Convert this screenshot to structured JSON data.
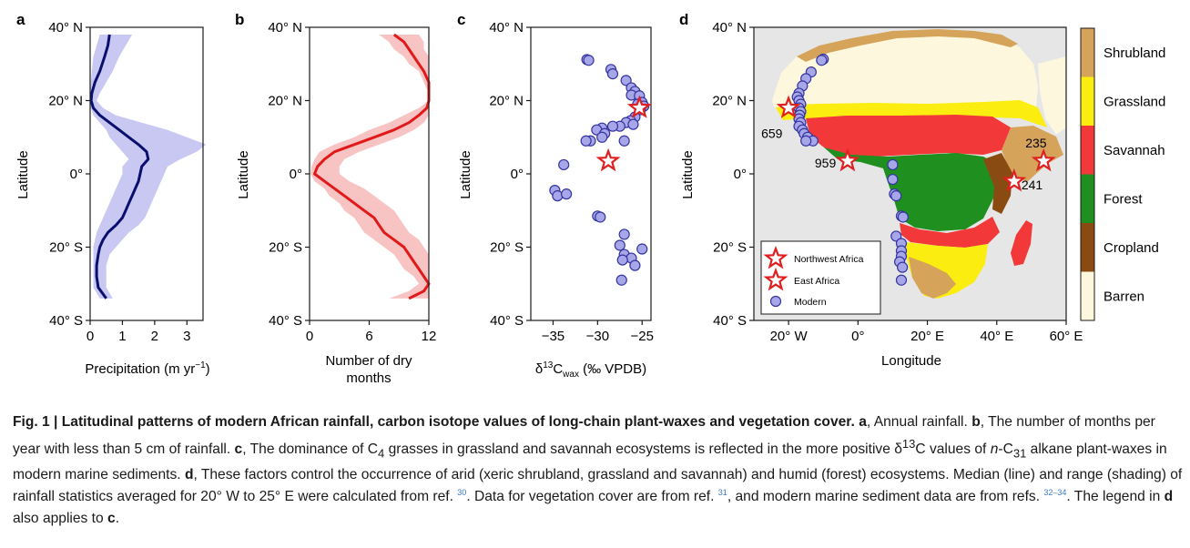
{
  "panels": {
    "a": {
      "letter": "a",
      "xlabel_main": "Precipitation (m yr",
      "xlabel_sup": "−1",
      "xlabel_end": ")",
      "xticks": [
        "0",
        "1",
        "2",
        "3"
      ],
      "ylabel": "Latitude"
    },
    "b": {
      "letter": "b",
      "xlabel_line1": "Number of dry",
      "xlabel_line2": "months",
      "xticks": [
        "0",
        "6",
        "12"
      ],
      "ylabel": "Latitude"
    },
    "c": {
      "letter": "c",
      "xlabel_delta": "δ",
      "xlabel_sup": "13",
      "xlabel_c": "C",
      "xlabel_sub": "wax",
      "xlabel_end": " (‰ VPDB)",
      "xticks": [
        "−35",
        "−30",
        "−25"
      ],
      "ylabel": "Latitude"
    },
    "d": {
      "letter": "d",
      "xlabel": "Longitude",
      "xticks": [
        "20° W",
        "0°",
        "20° E",
        "40° E",
        "60° E"
      ],
      "ylabel": "Latitude",
      "site_labels": [
        "659",
        "959",
        "235",
        "241"
      ],
      "legend": [
        "Northwest Africa",
        "East Africa",
        "Modern"
      ]
    }
  },
  "yticks": [
    "40° N",
    "20° N",
    "0°",
    "20° S",
    "40° S"
  ],
  "colorbar": {
    "classes": [
      {
        "label": "Shrubland",
        "color": "#d6a35a"
      },
      {
        "label": "Grassland",
        "color": "#fbed10"
      },
      {
        "label": "Savannah",
        "color": "#f23838"
      },
      {
        "label": "Forest",
        "color": "#1f8f1f"
      },
      {
        "label": "Cropland",
        "color": "#8a4b12"
      },
      {
        "label": "Barren",
        "color": "#fdf7de"
      }
    ]
  },
  "colors": {
    "median_a": "#0a0f6e",
    "range_a": "#c8c8f2",
    "median_b": "#e01a1a",
    "range_b": "#f7c3c3",
    "marker_fill": "#a6a6e8",
    "marker_stroke": "#3535a0",
    "star": "#e02020",
    "ocean": "#e6e6e6"
  },
  "caption": {
    "fig": "Fig. 1 | ",
    "title": "Latitudinal patterns of modern African rainfall, carbon isotope values of long-chain plant-waxes and vegetation cover.",
    "a_letter": "a",
    "a_text": ", Annual rainfall. ",
    "b_letter": "b",
    "b_text": ", The number of months per year with less than 5 cm of rainfall. ",
    "c_letter": "c",
    "c_text1": ", The dominance of C",
    "c_sub": "4",
    "c_text2": " grasses in grassland and savannah ecosystems is reflected in the more positive δ",
    "c_sup": "13",
    "c_text3": "C values of ",
    "c_italic": "n",
    "c_text4": "-C",
    "c_sub2": "31",
    "c_text5": " alkane plant-waxes in modern marine sediments. ",
    "d_letter": "d",
    "d_text": ", These factors control the occurrence of arid (xeric shrubland, grassland and savannah) and humid (forest) ecosystems. Median (line) and range (shading) of rainfall statistics averaged for 20° W to 25° E were calculated from ref. ",
    "ref30": "30",
    "d_text2": ". Data for vegetation cover are from ref. ",
    "ref31": "31",
    "d_text3": ", and modern marine sediment data are from refs. ",
    "ref32": "32–34",
    "d_text4": ". The legend in ",
    "d_letter2": "d",
    "d_text5": " also applies to ",
    "c_letter2": "c",
    "d_text6": "."
  },
  "chart_data": [
    {
      "type": "line",
      "panel": "a",
      "xlabel": "Precipitation (m yr−1)",
      "ylabel": "Latitude",
      "xlim": [
        0,
        3.5
      ],
      "ylim": [
        -40,
        40
      ],
      "series": [
        {
          "lat": [
            38,
            35,
            32,
            28,
            25,
            22,
            20,
            18,
            16,
            14,
            12,
            10,
            8,
            6,
            4,
            2,
            0,
            -2,
            -4,
            -6,
            -8,
            -10,
            -12,
            -14,
            -16,
            -18,
            -20,
            -22,
            -25,
            -28,
            -31,
            -34
          ],
          "median": [
            0.6,
            0.55,
            0.45,
            0.3,
            0.15,
            0.05,
            0.03,
            0.1,
            0.3,
            0.6,
            0.9,
            1.2,
            1.5,
            1.75,
            1.8,
            1.6,
            1.55,
            1.5,
            1.4,
            1.3,
            1.2,
            1.1,
            1.0,
            0.8,
            0.55,
            0.4,
            0.3,
            0.25,
            0.2,
            0.2,
            0.25,
            0.5
          ],
          "low": [
            0.3,
            0.2,
            0.1,
            0.05,
            0.02,
            0.01,
            0.01,
            0.02,
            0.1,
            0.3,
            0.5,
            0.6,
            0.8,
            1.0,
            1.2,
            1.0,
            1.0,
            0.9,
            0.8,
            0.7,
            0.6,
            0.5,
            0.4,
            0.3,
            0.2,
            0.15,
            0.1,
            0.1,
            0.1,
            0.1,
            0.1,
            0.3
          ],
          "high": [
            1.3,
            1.1,
            0.9,
            0.7,
            0.5,
            0.3,
            0.2,
            0.4,
            0.8,
            1.6,
            2.4,
            3.0,
            3.6,
            3.3,
            2.8,
            2.4,
            2.3,
            2.2,
            2.1,
            2.0,
            1.9,
            1.8,
            1.7,
            1.5,
            1.2,
            1.0,
            0.8,
            0.6,
            0.5,
            0.5,
            0.5,
            0.7
          ]
        }
      ]
    },
    {
      "type": "line",
      "panel": "b",
      "xlabel": "Number of dry months",
      "ylabel": "Latitude",
      "xlim": [
        0,
        12
      ],
      "ylim": [
        -40,
        40
      ],
      "series": [
        {
          "lat": [
            38,
            36,
            34,
            32,
            30,
            28,
            25,
            22,
            20,
            18,
            16,
            14,
            12,
            10,
            8,
            6,
            4,
            2,
            0,
            -2,
            -4,
            -6,
            -8,
            -10,
            -12,
            -14,
            -16,
            -18,
            -20,
            -22,
            -24,
            -26,
            -28,
            -30,
            -32,
            -34
          ],
          "median": [
            8.5,
            9.5,
            10,
            10.5,
            11,
            11.5,
            12,
            12,
            12,
            11.8,
            11,
            10,
            8.5,
            6.5,
            4.5,
            2.5,
            1.5,
            0.8,
            0.5,
            1.5,
            2.5,
            3.5,
            4.5,
            5.5,
            6.5,
            7,
            7.5,
            8.5,
            9.5,
            10,
            10.5,
            11,
            11.5,
            12,
            11.5,
            10
          ],
          "low": [
            7,
            8,
            8.5,
            9.5,
            10,
            11,
            11.5,
            12,
            12,
            11,
            9.5,
            8,
            6,
            4.5,
            2.5,
            1,
            0.5,
            0.2,
            0.1,
            0.5,
            1.5,
            2,
            3,
            3.5,
            4.5,
            5,
            5.5,
            6.5,
            7.5,
            8.5,
            9,
            9.5,
            10.5,
            11,
            10,
            8
          ],
          "high": [
            11,
            11.5,
            11.5,
            12,
            12,
            12,
            12,
            12,
            12,
            12,
            12,
            11.5,
            10.5,
            9,
            7,
            5,
            3.5,
            3,
            3,
            4,
            5.5,
            6.5,
            7.5,
            8.5,
            9,
            9.5,
            10,
            11,
            11.5,
            12,
            12,
            12,
            12,
            12,
            12,
            12
          ]
        }
      ]
    },
    {
      "type": "scatter",
      "panel": "c",
      "xlabel": "δ13Cwax (‰ VPDB)",
      "ylabel": "Latitude",
      "xlim": [
        -37.5,
        -24
      ],
      "ylim": [
        -40,
        40
      ],
      "series": [
        {
          "name": "Modern",
          "points": [
            [
              -31.2,
              31.2
            ],
            [
              -31,
              31
            ],
            [
              -28.5,
              28.5
            ],
            [
              -28.3,
              27.3
            ],
            [
              -26.8,
              25.5
            ],
            [
              -26.2,
              23.5
            ],
            [
              -25.8,
              22.5
            ],
            [
              -26.2,
              21.5
            ],
            [
              -25.3,
              21.3
            ],
            [
              -25,
              19.5
            ],
            [
              -25.5,
              19
            ],
            [
              -24.8,
              18.5
            ],
            [
              -25.2,
              17.5
            ],
            [
              -25.8,
              15.5
            ],
            [
              -26.3,
              14.5
            ],
            [
              -26.8,
              14
            ],
            [
              -26,
              13.5
            ],
            [
              -27.5,
              13
            ],
            [
              -28.3,
              13
            ],
            [
              -29.5,
              12.5
            ],
            [
              -30.1,
              12
            ],
            [
              -29.2,
              11
            ],
            [
              -29.5,
              10
            ],
            [
              -27,
              9
            ],
            [
              -30.8,
              9
            ],
            [
              -31.3,
              9
            ],
            [
              -33.8,
              2.5
            ],
            [
              -34.8,
              -4.5
            ],
            [
              -34.5,
              -6
            ],
            [
              -33.5,
              -5.5
            ],
            [
              -30,
              -11.5
            ],
            [
              -29.7,
              -11.8
            ],
            [
              -27,
              -16.5
            ],
            [
              -27.5,
              -19.5
            ],
            [
              -25,
              -20.5
            ],
            [
              -27,
              -22
            ],
            [
              -26.2,
              -23
            ],
            [
              -27.2,
              -23.5
            ],
            [
              -25.8,
              -25
            ],
            [
              -27.3,
              -29
            ]
          ]
        },
        {
          "name": "East Africa",
          "points": [
            [
              -28.8,
              3.5
            ]
          ]
        },
        {
          "name": "Northwest Africa",
          "points": [
            [
              -25.3,
              18
            ]
          ]
        }
      ]
    },
    {
      "type": "scatter",
      "panel": "d",
      "xlabel": "Longitude",
      "ylabel": "Latitude",
      "xlim": [
        -30,
        60
      ],
      "ylim": [
        -40,
        40
      ],
      "series": [
        {
          "name": "Modern",
          "points": [
            [
              -10,
              31.3
            ],
            [
              -10.5,
              31
            ],
            [
              -13.5,
              27.8
            ],
            [
              -15,
              26
            ],
            [
              -16,
              24
            ],
            [
              -17,
              22
            ],
            [
              -17.5,
              21
            ],
            [
              -17,
              20
            ],
            [
              -16.5,
              19
            ],
            [
              -17,
              18
            ],
            [
              -16.5,
              17
            ],
            [
              -16.8,
              16
            ],
            [
              -17,
              15
            ],
            [
              -16.5,
              14
            ],
            [
              -17,
              13
            ],
            [
              -16,
              12
            ],
            [
              -15.5,
              11
            ],
            [
              -14.5,
              10
            ],
            [
              -13,
              9
            ],
            [
              -15,
              9
            ],
            [
              10,
              2.5
            ],
            [
              10,
              -1.5
            ],
            [
              10.5,
              -5.5
            ],
            [
              11,
              -6
            ],
            [
              12.5,
              -11.5
            ],
            [
              13,
              -11.8
            ],
            [
              11,
              -17
            ],
            [
              12.5,
              -19
            ],
            [
              12.5,
              -21
            ],
            [
              12.5,
              -22.5
            ],
            [
              12,
              -24
            ],
            [
              12.8,
              -25.5
            ],
            [
              12.5,
              -29
            ]
          ]
        },
        {
          "name": "Northwest Africa",
          "points": [
            [
              -20,
              18
            ]
          ],
          "labels": [
            "659"
          ]
        },
        {
          "name": "East Africa",
          "points": [
            [
              -3,
              3.5
            ],
            [
              53.5,
              3.5
            ],
            [
              45,
              -2
            ]
          ],
          "labels": [
            "959",
            "235",
            "241"
          ]
        }
      ]
    }
  ]
}
